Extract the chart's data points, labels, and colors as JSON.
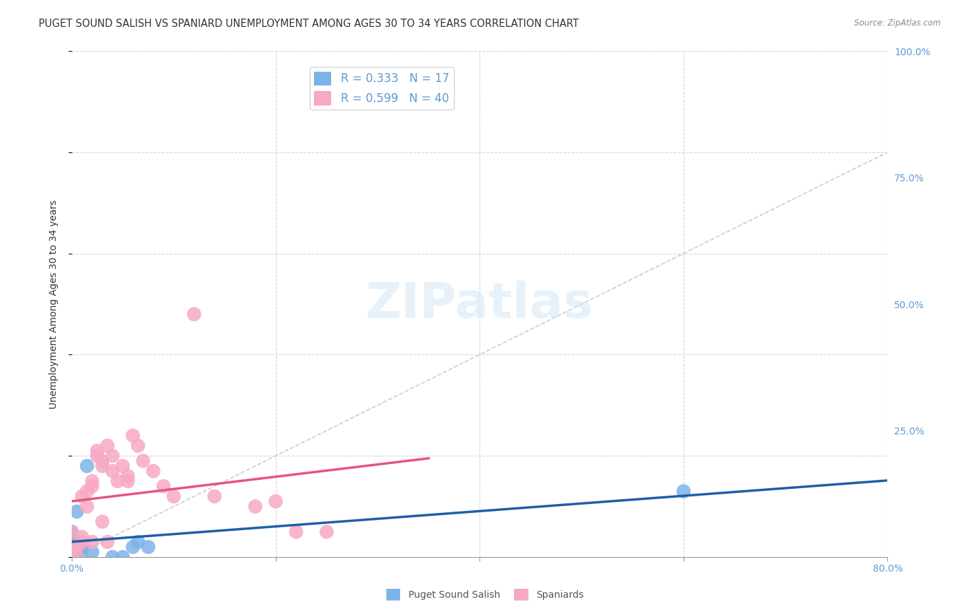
{
  "title": "PUGET SOUND SALISH VS SPANIARD UNEMPLOYMENT AMONG AGES 30 TO 34 YEARS CORRELATION CHART",
  "source": "Source: ZipAtlas.com",
  "ylabel": "Unemployment Among Ages 30 to 34 years",
  "xlim": [
    0.0,
    0.8
  ],
  "ylim": [
    0.0,
    1.0
  ],
  "background_color": "#ffffff",
  "grid_color": "#cccccc",
  "watermark": "ZIPatlas",
  "blue_color": "#7EB3E8",
  "pink_color": "#F7A8C4",
  "blue_line_color": "#1E5FA8",
  "pink_line_color": "#E8547A",
  "diagonal_color": "#cccccc",
  "R_blue": 0.333,
  "N_blue": 17,
  "R_pink": 0.599,
  "N_pink": 40,
  "blue_points_x": [
    0.0,
    0.0,
    0.0,
    0.0,
    0.005,
    0.005,
    0.01,
    0.01,
    0.015,
    0.02,
    0.04,
    0.05,
    0.06,
    0.065,
    0.075,
    0.6,
    0.005
  ],
  "blue_points_y": [
    0.02,
    0.03,
    0.04,
    0.05,
    0.0,
    0.01,
    0.01,
    0.02,
    0.18,
    0.01,
    0.0,
    0.0,
    0.02,
    0.03,
    0.02,
    0.13,
    0.09
  ],
  "pink_points_x": [
    0.0,
    0.0,
    0.0,
    0.0,
    0.005,
    0.005,
    0.01,
    0.01,
    0.01,
    0.015,
    0.015,
    0.02,
    0.02,
    0.025,
    0.025,
    0.03,
    0.03,
    0.035,
    0.04,
    0.04,
    0.045,
    0.05,
    0.055,
    0.055,
    0.06,
    0.065,
    0.07,
    0.08,
    0.09,
    0.1,
    0.12,
    0.14,
    0.18,
    0.2,
    0.22,
    0.25,
    0.0,
    0.02,
    0.03,
    0.035
  ],
  "pink_points_y": [
    0.0,
    0.01,
    0.02,
    0.05,
    0.0,
    0.02,
    0.03,
    0.04,
    0.12,
    0.1,
    0.13,
    0.14,
    0.15,
    0.2,
    0.21,
    0.18,
    0.19,
    0.22,
    0.17,
    0.2,
    0.15,
    0.18,
    0.16,
    0.15,
    0.24,
    0.22,
    0.19,
    0.17,
    0.14,
    0.12,
    0.48,
    0.12,
    0.1,
    0.11,
    0.05,
    0.05,
    0.005,
    0.03,
    0.07,
    0.03
  ],
  "legend_labels": [
    "Puget Sound Salish",
    "Spaniards"
  ],
  "title_fontsize": 10.5,
  "axis_label_fontsize": 10,
  "tick_fontsize": 10
}
